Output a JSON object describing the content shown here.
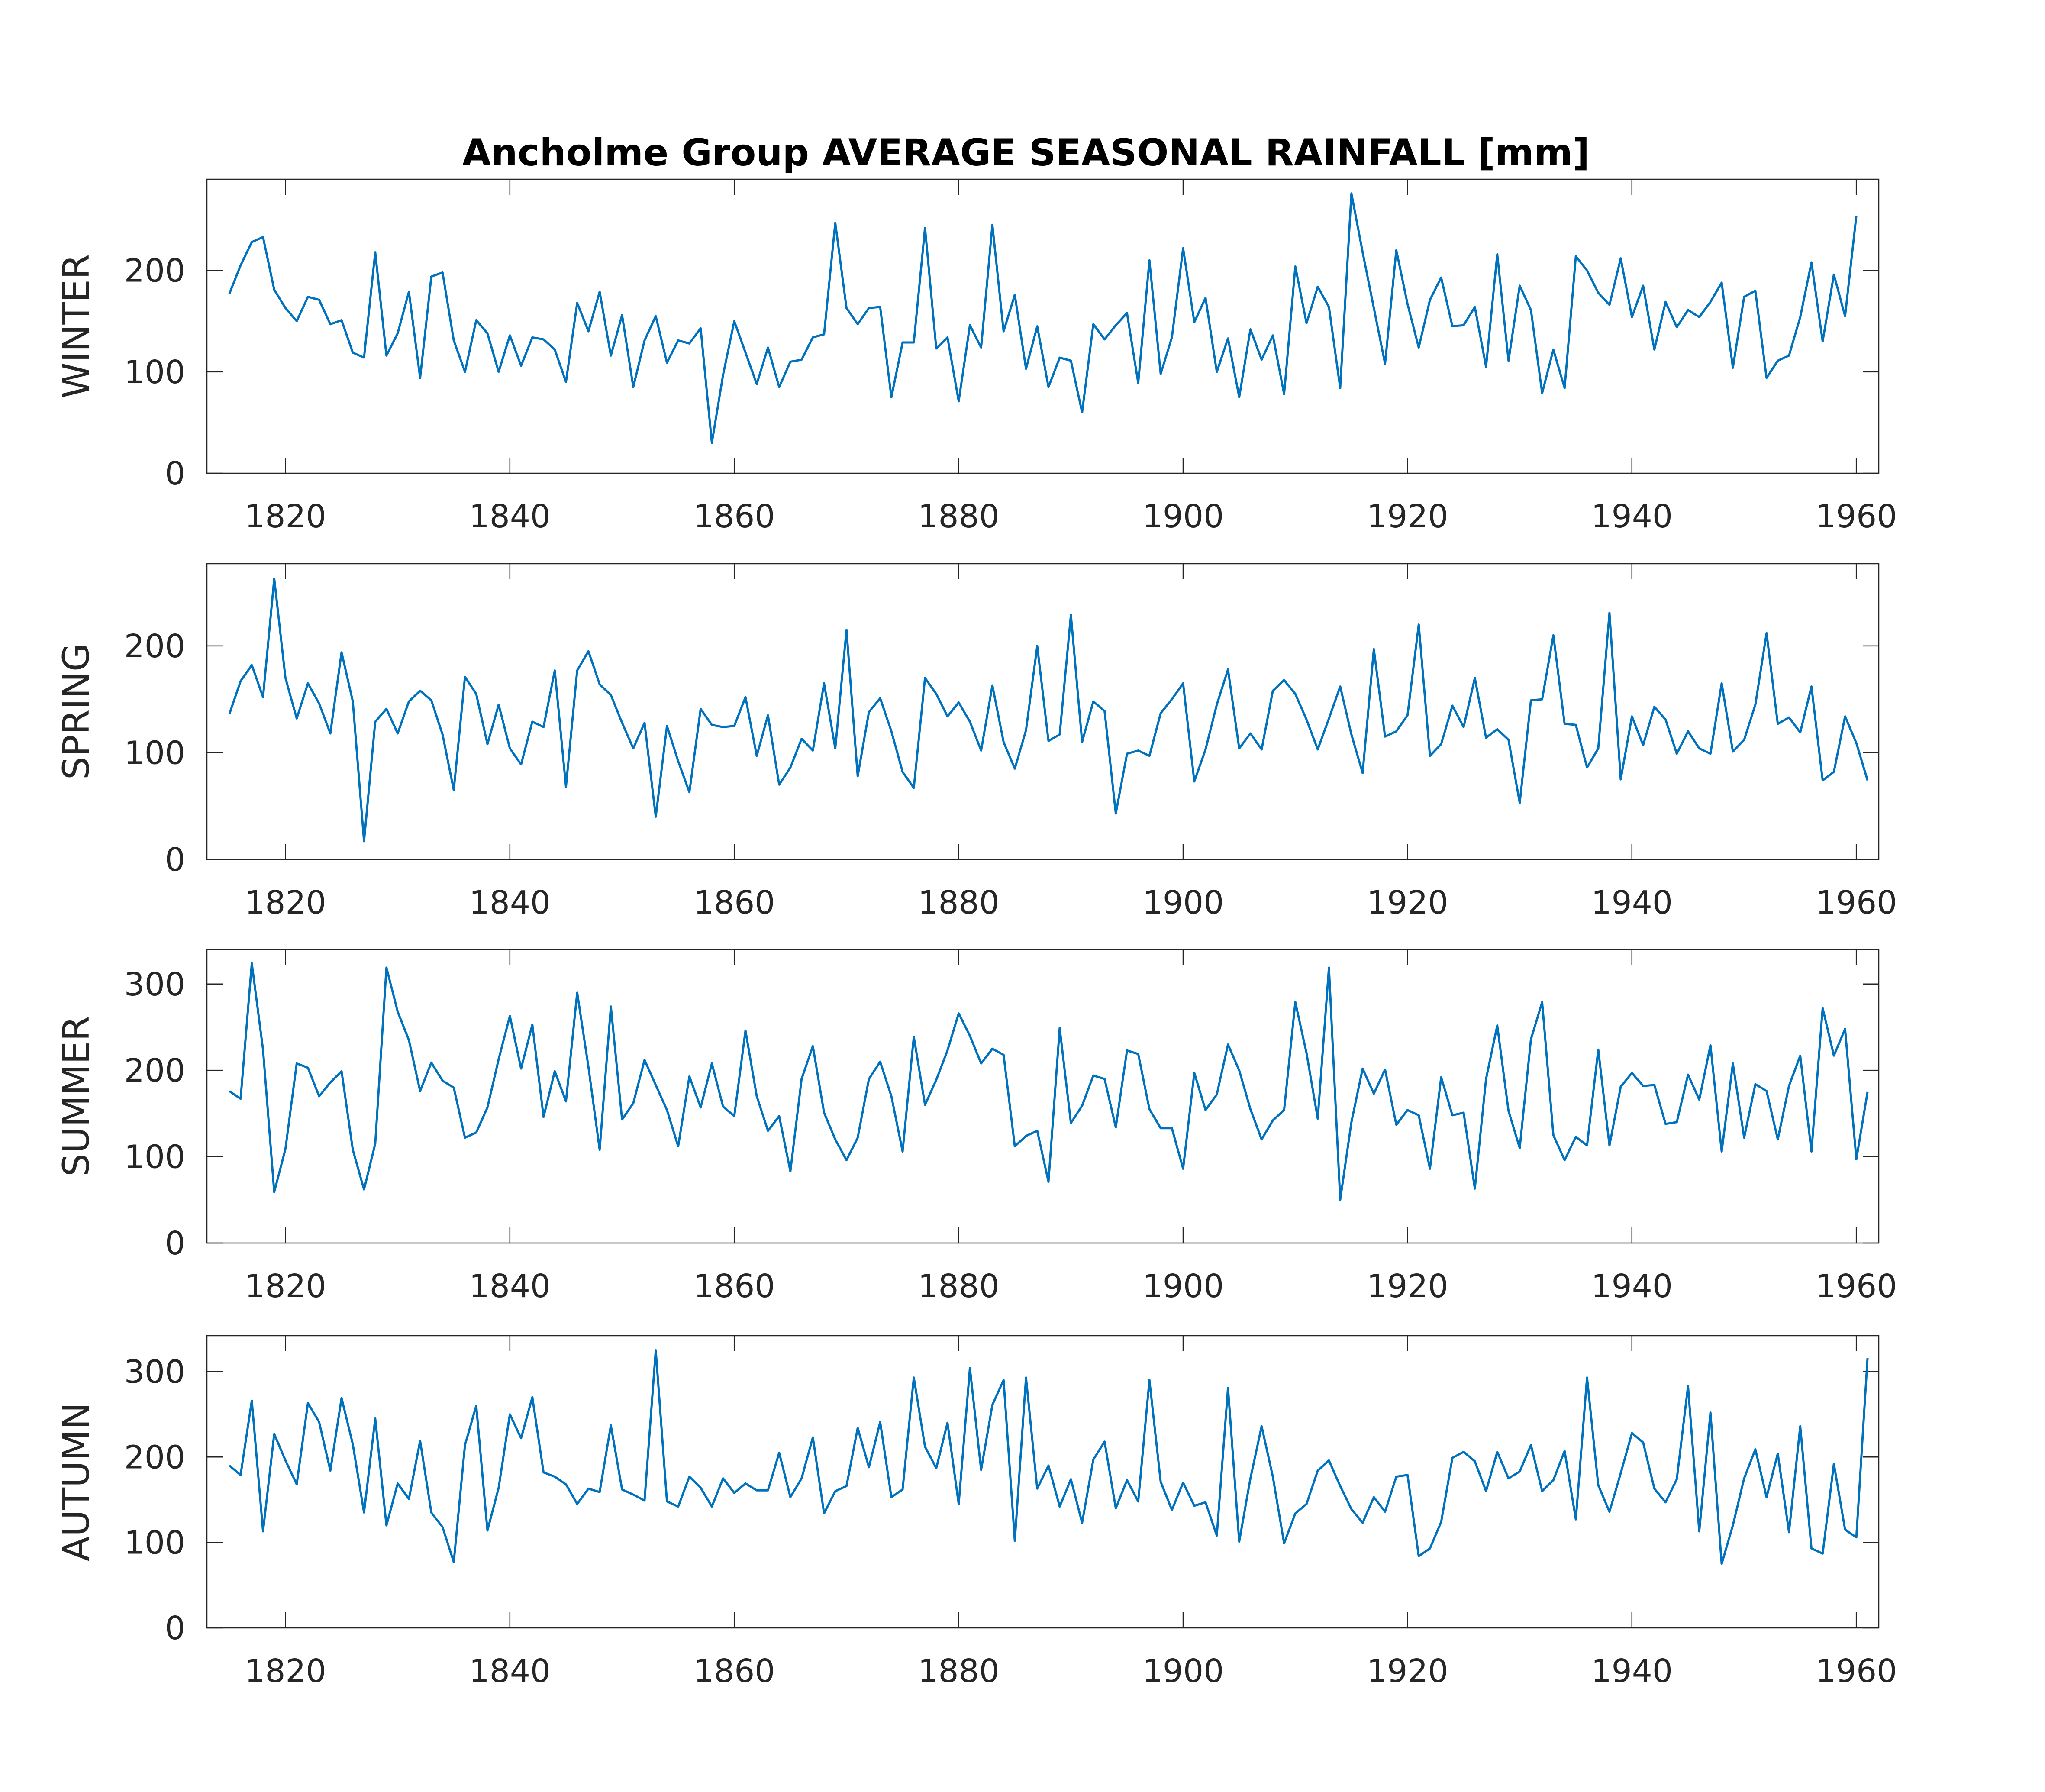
{
  "chart_data": {
    "type": "line",
    "title": "Ancholme Group AVERAGE SEASONAL RAINFALL [mm]",
    "start_year": 1815,
    "xlim": [
      1813,
      1962
    ],
    "xticks": [
      1820,
      1840,
      1860,
      1880,
      1900,
      1920,
      1940,
      1960
    ],
    "line_color": "#0072BD",
    "panels": [
      {
        "name": "WINTER",
        "ylabel": "WINTER",
        "ylim": [
          0,
          290
        ],
        "yticks": [
          0,
          100,
          200
        ],
        "values": [
          177,
          205,
          228,
          233,
          181,
          163,
          150,
          174,
          171,
          147,
          151,
          119,
          114,
          218,
          116,
          138,
          179,
          94,
          194,
          198,
          131,
          100,
          151,
          138,
          100,
          136,
          106,
          134,
          132,
          122,
          90,
          168,
          140,
          179,
          116,
          156,
          85,
          131,
          155,
          109,
          131,
          128,
          143,
          30,
          97,
          150,
          119,
          88,
          124,
          85,
          110,
          112,
          134,
          137,
          247,
          163,
          147,
          163,
          164,
          75,
          129,
          129,
          242,
          123,
          134,
          71,
          146,
          124,
          245,
          140,
          176,
          103,
          145,
          85,
          114,
          111,
          60,
          147,
          132,
          146,
          158,
          89,
          210,
          98,
          134,
          222,
          149,
          173,
          100,
          133,
          75,
          142,
          112,
          136,
          78,
          204,
          148,
          184,
          164,
          84,
          276,
          218,
          163,
          108,
          220,
          167,
          124,
          171,
          193,
          145,
          146,
          164,
          105,
          216,
          111,
          185,
          161,
          79,
          122,
          84,
          214,
          200,
          178,
          166,
          212,
          154,
          185,
          122,
          169,
          144,
          161,
          154,
          169,
          188,
          104,
          174,
          180,
          94,
          111,
          116,
          154,
          208,
          130,
          196,
          155,
          254
        ]
      },
      {
        "name": "SPRING",
        "ylabel": "SPRING",
        "ylim": [
          0,
          277
        ],
        "yticks": [
          0,
          100,
          200
        ],
        "values": [
          136,
          167,
          182,
          152,
          263,
          170,
          132,
          165,
          146,
          118,
          194,
          148,
          17,
          129,
          141,
          118,
          148,
          158,
          149,
          117,
          65,
          171,
          155,
          108,
          145,
          104,
          89,
          129,
          124,
          177,
          68,
          177,
          195,
          164,
          154,
          128,
          104,
          128,
          40,
          125,
          92,
          63,
          141,
          126,
          124,
          125,
          152,
          97,
          135,
          70,
          86,
          113,
          102,
          165,
          104,
          215,
          78,
          138,
          151,
          120,
          82,
          67,
          170,
          155,
          134,
          147,
          129,
          102,
          163,
          110,
          85,
          121,
          200,
          111,
          117,
          229,
          110,
          148,
          139,
          43,
          99,
          102,
          97,
          137,
          150,
          165,
          73,
          103,
          145,
          178,
          104,
          118,
          103,
          158,
          168,
          155,
          131,
          103,
          132,
          162,
          117,
          81,
          197,
          115,
          120,
          135,
          220,
          97,
          108,
          144,
          124,
          170,
          114,
          122,
          112,
          53,
          149,
          150,
          210,
          127,
          126,
          86,
          104,
          231,
          75,
          134,
          107,
          143,
          131,
          99,
          120,
          104,
          99,
          165,
          101,
          112,
          145,
          212,
          127,
          133,
          119,
          162,
          74,
          82,
          134,
          109,
          74
        ]
      },
      {
        "name": "SUMMER",
        "ylabel": "SUMMER",
        "ylim": [
          0,
          340
        ],
        "yticks": [
          0,
          100,
          200,
          300
        ],
        "values": [
          176,
          167,
          324,
          224,
          59,
          109,
          208,
          203,
          170,
          186,
          199,
          108,
          62,
          115,
          319,
          268,
          235,
          176,
          209,
          188,
          180,
          122,
          128,
          157,
          213,
          263,
          202,
          253,
          146,
          199,
          164,
          290,
          204,
          108,
          274,
          143,
          162,
          212,
          183,
          154,
          112,
          193,
          157,
          208,
          158,
          147,
          246,
          170,
          130,
          147,
          83,
          190,
          228,
          151,
          120,
          96,
          122,
          190,
          210,
          170,
          106,
          239,
          160,
          189,
          223,
          266,
          240,
          208,
          225,
          218,
          112,
          124,
          130,
          71,
          249,
          139,
          159,
          194,
          190,
          134,
          223,
          219,
          155,
          133,
          133,
          86,
          197,
          154,
          172,
          230,
          200,
          155,
          120,
          142,
          154,
          279,
          220,
          144,
          319,
          50,
          140,
          202,
          173,
          201,
          137,
          154,
          148,
          86,
          192,
          148,
          151,
          63,
          190,
          252,
          153,
          110,
          236,
          279,
          125,
          96,
          123,
          113,
          224,
          113,
          181,
          197,
          182,
          183,
          138,
          140,
          195,
          166,
          229,
          106,
          208,
          122,
          184,
          176,
          120,
          182,
          217,
          106,
          272,
          217,
          248,
          97,
          175
        ]
      },
      {
        "name": "AUTUMN",
        "ylabel": "AUTUMN",
        "ylim": [
          0,
          342
        ],
        "yticks": [
          0,
          100,
          200,
          300
        ],
        "values": [
          190,
          179,
          266,
          113,
          227,
          196,
          168,
          263,
          241,
          184,
          269,
          215,
          135,
          245,
          120,
          169,
          151,
          219,
          135,
          118,
          77,
          214,
          260,
          114,
          164,
          250,
          222,
          270,
          182,
          177,
          168,
          145,
          163,
          159,
          237,
          162,
          156,
          149,
          325,
          148,
          142,
          177,
          164,
          142,
          175,
          158,
          169,
          161,
          161,
          205,
          153,
          175,
          223,
          134,
          160,
          166,
          234,
          188,
          241,
          153,
          162,
          293,
          212,
          187,
          240,
          145,
          304,
          185,
          261,
          290,
          102,
          293,
          163,
          190,
          142,
          174,
          123,
          197,
          218,
          140,
          173,
          148,
          290,
          171,
          138,
          170,
          143,
          147,
          108,
          281,
          101,
          175,
          236,
          177,
          99,
          134,
          145,
          184,
          196,
          166,
          139,
          123,
          153,
          136,
          177,
          179,
          84,
          93,
          124,
          199,
          206,
          195,
          160,
          206,
          175,
          183,
          214,
          160,
          173,
          207,
          127,
          293,
          167,
          136,
          181,
          228,
          217,
          163,
          147,
          174,
          283,
          113,
          252,
          75,
          120,
          175,
          209,
          153,
          204,
          112,
          236,
          93,
          87,
          192,
          115,
          106,
          316
        ]
      }
    ]
  }
}
